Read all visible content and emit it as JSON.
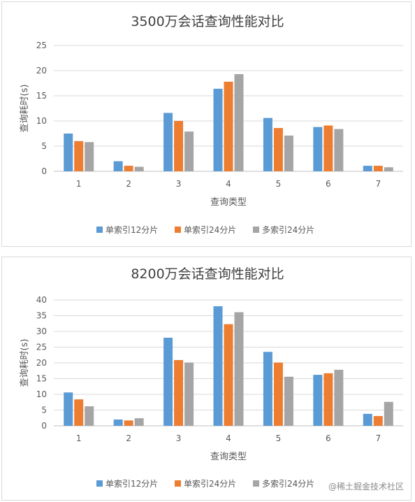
{
  "colors": {
    "series": [
      "#5b9bd5",
      "#ed7d31",
      "#a5a5a5"
    ],
    "grid": "#d9d9d9",
    "text": "#595959",
    "title": "#404040"
  },
  "watermark": "@稀土掘金技术社区",
  "chart_data": [
    {
      "type": "bar",
      "title": "3500万会话查询性能对比",
      "xlabel": "查询类型",
      "ylabel": "查询耗时(s)",
      "categories": [
        "1",
        "2",
        "3",
        "4",
        "5",
        "6",
        "7"
      ],
      "ylim": [
        0,
        25
      ],
      "yticks": [
        0,
        5,
        10,
        15,
        20,
        25
      ],
      "grid": true,
      "legend": "bottom",
      "series": [
        {
          "name": "单索引12分片",
          "values": [
            7.5,
            2.0,
            11.6,
            16.4,
            10.6,
            8.8,
            1.1
          ]
        },
        {
          "name": "单索引24分片",
          "values": [
            6.0,
            1.1,
            10.0,
            17.8,
            8.6,
            9.1,
            1.1
          ]
        },
        {
          "name": "多索引24分片",
          "values": [
            5.8,
            0.9,
            7.9,
            19.3,
            7.1,
            8.4,
            0.8
          ]
        }
      ]
    },
    {
      "type": "bar",
      "title": "8200万会话查询性能对比",
      "xlabel": "查询类型",
      "ylabel": "查询耗时(s)",
      "categories": [
        "1",
        "2",
        "3",
        "4",
        "5",
        "6",
        "7"
      ],
      "ylim": [
        0,
        40
      ],
      "yticks": [
        0,
        5,
        10,
        15,
        20,
        25,
        30,
        35,
        40
      ],
      "grid": true,
      "legend": "bottom",
      "series": [
        {
          "name": "单索引12分片",
          "values": [
            10.6,
            2.0,
            28.0,
            38.0,
            23.5,
            16.2,
            3.8
          ]
        },
        {
          "name": "单索引24分片",
          "values": [
            8.4,
            1.7,
            20.9,
            32.3,
            20.1,
            16.7,
            3.1
          ]
        },
        {
          "name": "多索引24分片",
          "values": [
            6.2,
            2.4,
            20.1,
            36.1,
            15.6,
            17.8,
            7.6
          ]
        }
      ]
    }
  ]
}
